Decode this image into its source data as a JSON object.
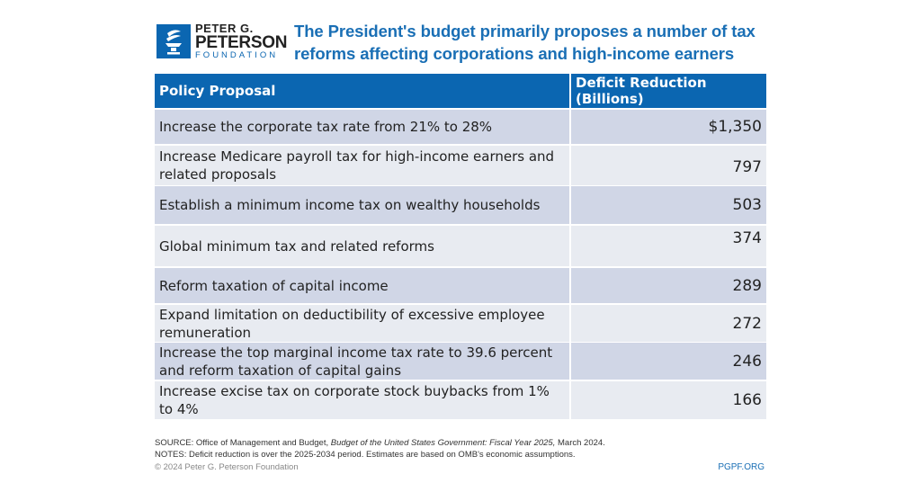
{
  "logo": {
    "line1": "PETER G.",
    "line2": "PETERSON",
    "line3": "FOUNDATION",
    "color": "#0b66b1"
  },
  "title": "The President's budget primarily proposes a number of tax reforms affecting corporations and high-income earners",
  "chart_data": {
    "type": "table",
    "columns": [
      "Policy Proposal",
      "Deficit Reduction (Billions)"
    ],
    "rows": [
      [
        "Increase the corporate tax rate from 21% to 28%",
        "$1,350"
      ],
      [
        "Increase Medicare payroll tax for high-income earners and related proposals",
        "797"
      ],
      [
        "Establish a minimum income tax on wealthy households",
        "503"
      ],
      [
        "Global minimum tax and related reforms",
        "374"
      ],
      [
        "Reform taxation of capital income",
        "289"
      ],
      [
        "Expand limitation on deductibility of excessive employee remuneration",
        "272"
      ],
      [
        "Increase the top marginal income tax rate to 39.6 percent and reform taxation of capital gains",
        "246"
      ],
      [
        "Increase excise tax on corporate stock buybacks from 1% to 4%",
        "166"
      ]
    ],
    "colors": {
      "header": "#0b66b1",
      "row_dark": "#d0d6e6",
      "row_light": "#e8ebf1",
      "title": "#1a6fb5"
    }
  },
  "footer": {
    "source_prefix": "SOURCE: Office of Management and Budget, ",
    "source_italic": "Budget of the United States Government: Fiscal Year 2025,",
    "source_suffix": " March 2024.",
    "notes": "NOTES: Deficit reduction is over the 2025-2034 period. Estimates are based on OMB's economic assumptions.",
    "copyright": "© 2024 Peter G. Peterson Foundation",
    "site": "PGPF.ORG"
  }
}
